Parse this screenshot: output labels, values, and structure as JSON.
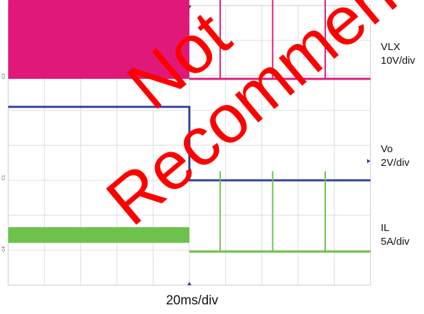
{
  "chart_data": {
    "type": "line",
    "title": "",
    "xlabel": "20ms/div",
    "grid": true,
    "divisions": {
      "x": 10,
      "y": 8
    },
    "x_unit": "ms",
    "x_scale_per_div": 20,
    "x_range": [
      0,
      200
    ],
    "series": [
      {
        "name": "VLX",
        "scale_label": "10V/div",
        "color": "#e0187a",
        "baseline_div": 0.95,
        "high_div": 2.4,
        "switching_until": 100,
        "spikes_ms": [
          17,
          46,
          75
        ],
        "spike_div": 2.4,
        "after_level_div": 0.0
      },
      {
        "name": "Vo",
        "scale_label": "2V/div",
        "color": "#2e3e9a",
        "baseline_div": -0.3,
        "before_level_div": 2.1,
        "step_at": 100,
        "after_level_div": 0.0
      },
      {
        "name": "IL",
        "scale_label": "5A/div",
        "color": "#6cc24a",
        "baseline_div": -2.65,
        "before_level_div": 0.7,
        "switching_until": 100,
        "spikes_ms": [
          17,
          46,
          75
        ],
        "spike_div": 2.3,
        "after_level_div": 0.0
      }
    ]
  },
  "ch_markers": [
    "C3",
    "C1",
    "C4"
  ],
  "watermark_text": "Not Recommended"
}
